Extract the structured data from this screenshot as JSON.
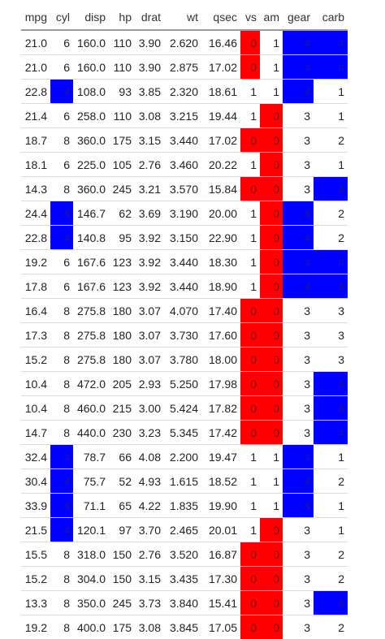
{
  "table": {
    "columns": [
      "mpg",
      "cyl",
      "disp",
      "hp",
      "drat",
      "wt",
      "qsec",
      "vs",
      "am",
      "gear",
      "carb"
    ],
    "highlight_colors": {
      "zero": "#ff0000",
      "four": "#0000ff"
    },
    "rows": [
      [
        "21.0",
        "6",
        "160.0",
        "110",
        "3.90",
        "2.620",
        "16.46",
        "0",
        "1",
        "4",
        "4"
      ],
      [
        "21.0",
        "6",
        "160.0",
        "110",
        "3.90",
        "2.875",
        "17.02",
        "0",
        "1",
        "4",
        "4"
      ],
      [
        "22.8",
        "4",
        "108.0",
        "93",
        "3.85",
        "2.320",
        "18.61",
        "1",
        "1",
        "4",
        "1"
      ],
      [
        "21.4",
        "6",
        "258.0",
        "110",
        "3.08",
        "3.215",
        "19.44",
        "1",
        "0",
        "3",
        "1"
      ],
      [
        "18.7",
        "8",
        "360.0",
        "175",
        "3.15",
        "3.440",
        "17.02",
        "0",
        "0",
        "3",
        "2"
      ],
      [
        "18.1",
        "6",
        "225.0",
        "105",
        "2.76",
        "3.460",
        "20.22",
        "1",
        "0",
        "3",
        "1"
      ],
      [
        "14.3",
        "8",
        "360.0",
        "245",
        "3.21",
        "3.570",
        "15.84",
        "0",
        "0",
        "3",
        "4"
      ],
      [
        "24.4",
        "4",
        "146.7",
        "62",
        "3.69",
        "3.190",
        "20.00",
        "1",
        "0",
        "4",
        "2"
      ],
      [
        "22.8",
        "4",
        "140.8",
        "95",
        "3.92",
        "3.150",
        "22.90",
        "1",
        "0",
        "4",
        "2"
      ],
      [
        "19.2",
        "6",
        "167.6",
        "123",
        "3.92",
        "3.440",
        "18.30",
        "1",
        "0",
        "4",
        "4"
      ],
      [
        "17.8",
        "6",
        "167.6",
        "123",
        "3.92",
        "3.440",
        "18.90",
        "1",
        "0",
        "4",
        "4"
      ],
      [
        "16.4",
        "8",
        "275.8",
        "180",
        "3.07",
        "4.070",
        "17.40",
        "0",
        "0",
        "3",
        "3"
      ],
      [
        "17.3",
        "8",
        "275.8",
        "180",
        "3.07",
        "3.730",
        "17.60",
        "0",
        "0",
        "3",
        "3"
      ],
      [
        "15.2",
        "8",
        "275.8",
        "180",
        "3.07",
        "3.780",
        "18.00",
        "0",
        "0",
        "3",
        "3"
      ],
      [
        "10.4",
        "8",
        "472.0",
        "205",
        "2.93",
        "5.250",
        "17.98",
        "0",
        "0",
        "3",
        "4"
      ],
      [
        "10.4",
        "8",
        "460.0",
        "215",
        "3.00",
        "5.424",
        "17.82",
        "0",
        "0",
        "3",
        "4"
      ],
      [
        "14.7",
        "8",
        "440.0",
        "230",
        "3.23",
        "5.345",
        "17.42",
        "0",
        "0",
        "3",
        "4"
      ],
      [
        "32.4",
        "4",
        "78.7",
        "66",
        "4.08",
        "2.200",
        "19.47",
        "1",
        "1",
        "4",
        "1"
      ],
      [
        "30.4",
        "4",
        "75.7",
        "52",
        "4.93",
        "1.615",
        "18.52",
        "1",
        "1",
        "4",
        "2"
      ],
      [
        "33.9",
        "4",
        "71.1",
        "65",
        "4.22",
        "1.835",
        "19.90",
        "1",
        "1",
        "4",
        "1"
      ],
      [
        "21.5",
        "4",
        "120.1",
        "97",
        "3.70",
        "2.465",
        "20.01",
        "1",
        "0",
        "3",
        "1"
      ],
      [
        "15.5",
        "8",
        "318.0",
        "150",
        "2.76",
        "3.520",
        "16.87",
        "0",
        "0",
        "3",
        "2"
      ],
      [
        "15.2",
        "8",
        "304.0",
        "150",
        "3.15",
        "3.435",
        "17.30",
        "0",
        "0",
        "3",
        "2"
      ],
      [
        "13.3",
        "8",
        "350.0",
        "245",
        "3.73",
        "3.840",
        "15.41",
        "0",
        "0",
        "3",
        "4"
      ],
      [
        "19.2",
        "8",
        "400.0",
        "175",
        "3.08",
        "3.845",
        "17.05",
        "0",
        "0",
        "3",
        "2"
      ]
    ]
  }
}
